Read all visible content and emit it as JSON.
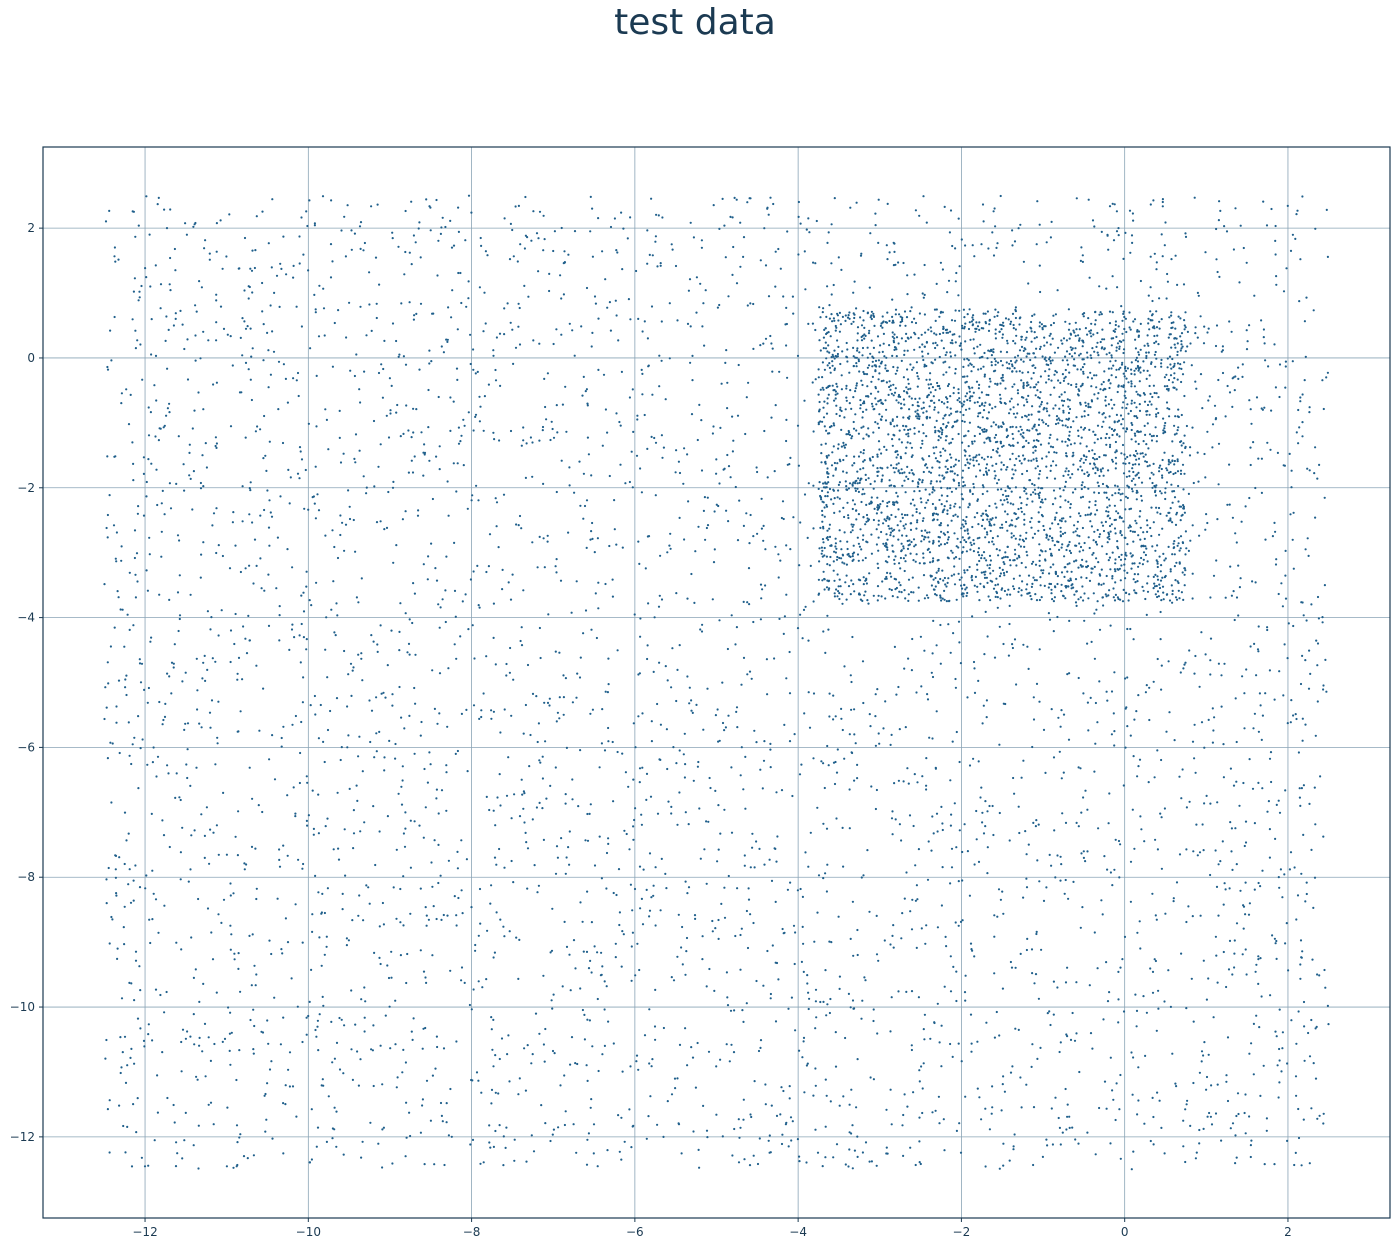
{
  "chart_data": {
    "type": "scatter",
    "title": "test data",
    "xlabel": "",
    "ylabel": "",
    "xlim": [
      -13.25,
      3.25
    ],
    "ylim": [
      -13.25,
      3.25
    ],
    "grid": true,
    "xticks": [
      -12,
      -10,
      -8,
      -6,
      -4,
      -2,
      0,
      2
    ],
    "yticks": [
      2,
      0,
      -2,
      -4,
      -6,
      -8,
      -10,
      -12
    ],
    "xtick_labels": [
      "−12",
      "−10",
      "−8",
      "−6",
      "−4",
      "−2",
      "0",
      "2"
    ],
    "ytick_labels": [
      "2",
      "0",
      "−2",
      "−4",
      "−6",
      "−8",
      "−10",
      "−12"
    ],
    "point_color": "#1f5f8b",
    "regions": [
      {
        "x_range": [
          -12.5,
          2.5
        ],
        "y_range": [
          -12.5,
          2.5
        ],
        "count": 4400,
        "distribution": "uniform"
      },
      {
        "x_range": [
          -3.75,
          0.75
        ],
        "y_range": [
          -3.75,
          0.75
        ],
        "count": 3000,
        "distribution": "uniform"
      }
    ]
  }
}
